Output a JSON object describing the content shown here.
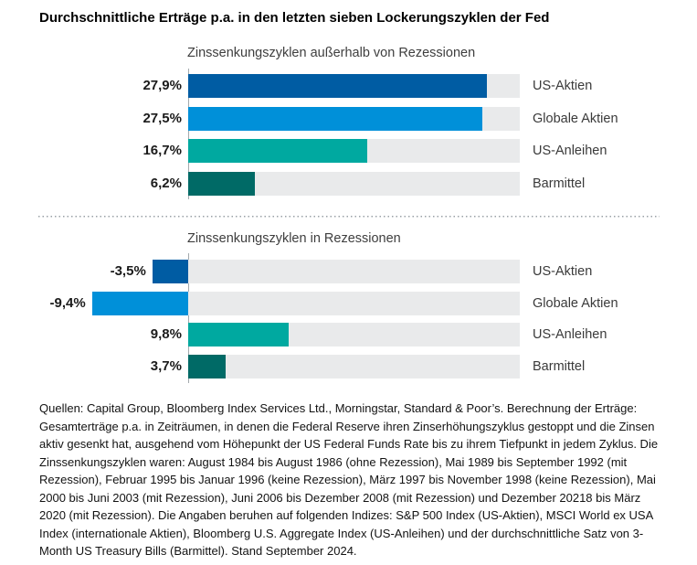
{
  "page": {
    "title": "Durchschnittliche Erträge p.a. in den letzten sieben Lockerungszyklen der Fed",
    "footnote": "Quellen: Capital Group, Bloomberg Index Services Ltd., Morningstar, Standard & Poor’s. Berechnung der Erträge: Gesamterträge p.a. in Zeiträumen, in denen die Federal Reserve ihren Zinserhöhungszyklus gestoppt und die Zinsen aktiv gesenkt hat, ausgehend vom Höhepunkt der US Federal Funds Rate bis zu ihrem Tiefpunkt in jedem Zyklus. Die Zinssenkungszyklen waren: August 1984 bis August 1986 (ohne Rezession), Mai 1989 bis September 1992 (mit Rezession), Februar 1995 bis Januar 1996 (keine Rezession), März 1997 bis November 1998 (keine Rezession), Mai 2000 bis Juni 2003 (mit Rezession), Juni 2006 bis Dezember 2008 (mit Rezession) und Dezember 20218 bis März 2020 (mit Rezession). Die Angaben beruhen auf folgenden Indizes: S&P 500 Index (US-Aktien), MSCI World ex USA Index (internationale Aktien), Bloomberg U.S. Aggregate Index (US-Anleihen) und der durchschnittliche Satz von 3-Month US Treasury Bills (Barmittel). Stand September 2024."
  },
  "colors": {
    "track": "#E9EAEB",
    "axis_line": "#A3A9AD",
    "divider_dots": "#9AA0A6",
    "text_primary": "#000000",
    "text_secondary": "#3A3A3A"
  },
  "chart_data": [
    {
      "type": "bar",
      "orientation": "horizontal",
      "title": "Zinssenkungszyklen außerhalb von Rezessionen",
      "categories": [
        "US-Aktien",
        "Globale Aktien",
        "US-Anleihen",
        "Barmittel"
      ],
      "values": [
        27.9,
        27.5,
        16.7,
        6.2
      ],
      "value_labels": [
        "27,9%",
        "27,5%",
        "16,7%",
        "6,2%"
      ],
      "bar_colors": [
        "#005CA3",
        "#0090D9",
        "#00A9A0",
        "#006A66"
      ],
      "track_color": "#E9EAEB",
      "xlim": [
        0,
        31
      ],
      "grid": false,
      "legend": "none"
    },
    {
      "type": "bar",
      "orientation": "horizontal",
      "title": "Zinssenkungszyklen in Rezessionen",
      "categories": [
        "US-Aktien",
        "Globale Aktien",
        "US-Anleihen",
        "Barmittel"
      ],
      "values": [
        -3.5,
        -9.4,
        9.8,
        3.7
      ],
      "value_labels": [
        "-3,5%",
        "-9,4%",
        "9,8%",
        "3,7%"
      ],
      "bar_colors": [
        "#005CA3",
        "#0090D9",
        "#00A9A0",
        "#006A66"
      ],
      "track_color": "#E9EAEB",
      "xlim": [
        0,
        32.4
      ],
      "grid": false,
      "legend": "none"
    }
  ]
}
